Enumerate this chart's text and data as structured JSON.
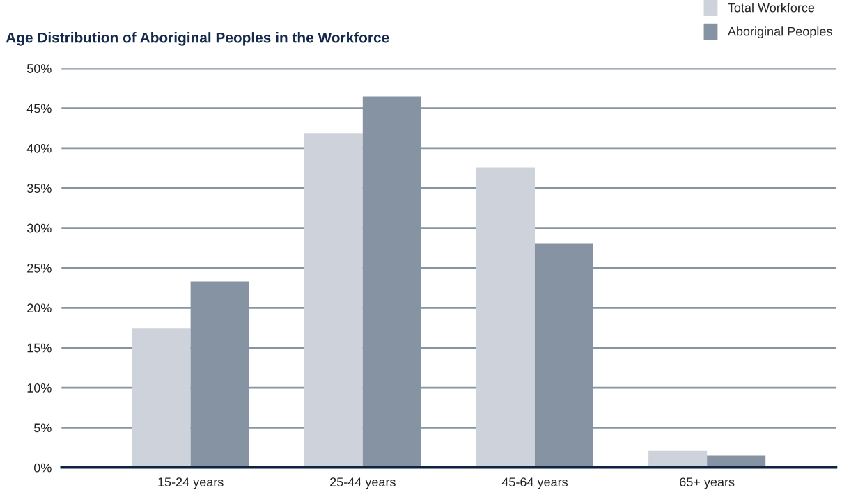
{
  "chart_data": {
    "type": "bar",
    "title": "Age Distribution of Aboriginal Peoples in the Workforce",
    "categories": [
      "15-24 years",
      "25-44 years",
      "45-64 years",
      "65+ years"
    ],
    "series": [
      {
        "name": "Total Workforce",
        "color": "#ced3db",
        "values": [
          17.4,
          41.9,
          37.6,
          2.1
        ]
      },
      {
        "name": "Aboriginal Peoples",
        "color": "#8693a2",
        "values": [
          23.3,
          46.5,
          28.1,
          1.5
        ]
      }
    ],
    "ylim": [
      0,
      50
    ],
    "yticks": [
      {
        "value": 0,
        "label": "0%"
      },
      {
        "value": 5,
        "label": "5%"
      },
      {
        "value": 10,
        "label": "10%"
      },
      {
        "value": 15,
        "label": "15%"
      },
      {
        "value": 20,
        "label": "20%"
      },
      {
        "value": 25,
        "label": "25%"
      },
      {
        "value": 30,
        "label": "30%"
      },
      {
        "value": 35,
        "label": "35%"
      },
      {
        "value": 40,
        "label": "40%"
      },
      {
        "value": 45,
        "label": "45%"
      },
      {
        "value": 50,
        "label": "50%"
      }
    ],
    "grid": "y",
    "legend": "top right"
  }
}
